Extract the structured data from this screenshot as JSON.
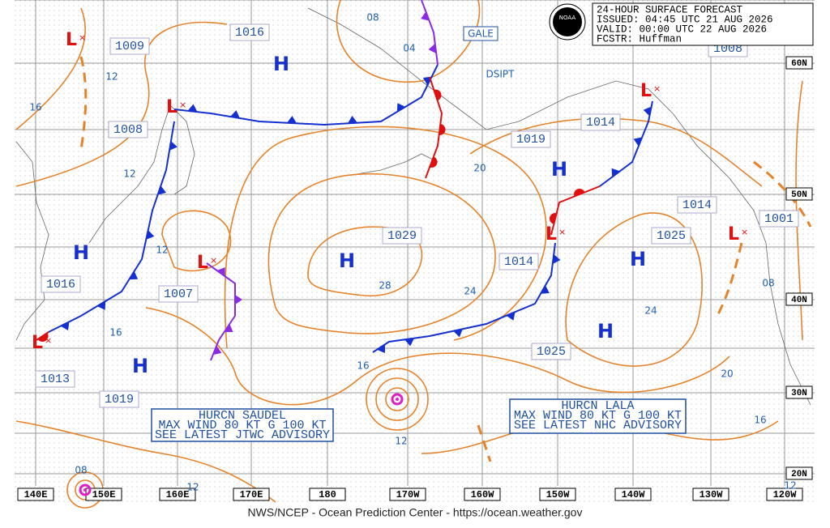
{
  "header": {
    "lines": [
      "24-HOUR SURFACE FORECAST",
      "ISSUED: 04:45 UTC 21 AUG 2026",
      "VALID:  00:00 UTC 22 AUG 2026",
      "FCSTR:  Huffman"
    ]
  },
  "logo": "NOAA",
  "footer": "NWS/NCEP - Ocean Prediction Center - https://ocean.weather.gov",
  "longitudes": [
    "140E",
    "150E",
    "160E",
    "170E",
    "180",
    "170W",
    "160W",
    "150W",
    "140W",
    "130W",
    "120W"
  ],
  "latitudes": [
    "60N",
    "50N",
    "40N",
    "30N",
    "20N"
  ],
  "pressure_labels": [
    "1009",
    "1016",
    "1008",
    "1019",
    "1014",
    "1008",
    "1029",
    "1014",
    "1025",
    "1014",
    "1001",
    "1007",
    "1016",
    "1025",
    "1013",
    "1019"
  ],
  "isobar_labels": [
    "08",
    "04",
    "12",
    "16",
    "12",
    "20",
    "12",
    "28",
    "24",
    "16",
    "24",
    "20",
    "16",
    "16",
    "12",
    "08",
    "08",
    "12",
    "12"
  ],
  "high_symbol": "H",
  "low_symbol": "L",
  "annotations": [
    "GALE",
    "DSIPT"
  ],
  "advisories": [
    {
      "lines": [
        "HURCN SAUDEL",
        "MAX WIND 80 KT G 100 KT",
        "SEE LATEST JTWC ADVISORY"
      ]
    },
    {
      "lines": [
        "HURCN LALA",
        "MAX WIND 80 KT G 100 KT",
        "SEE LATEST NHC ADVISORY"
      ]
    }
  ]
}
